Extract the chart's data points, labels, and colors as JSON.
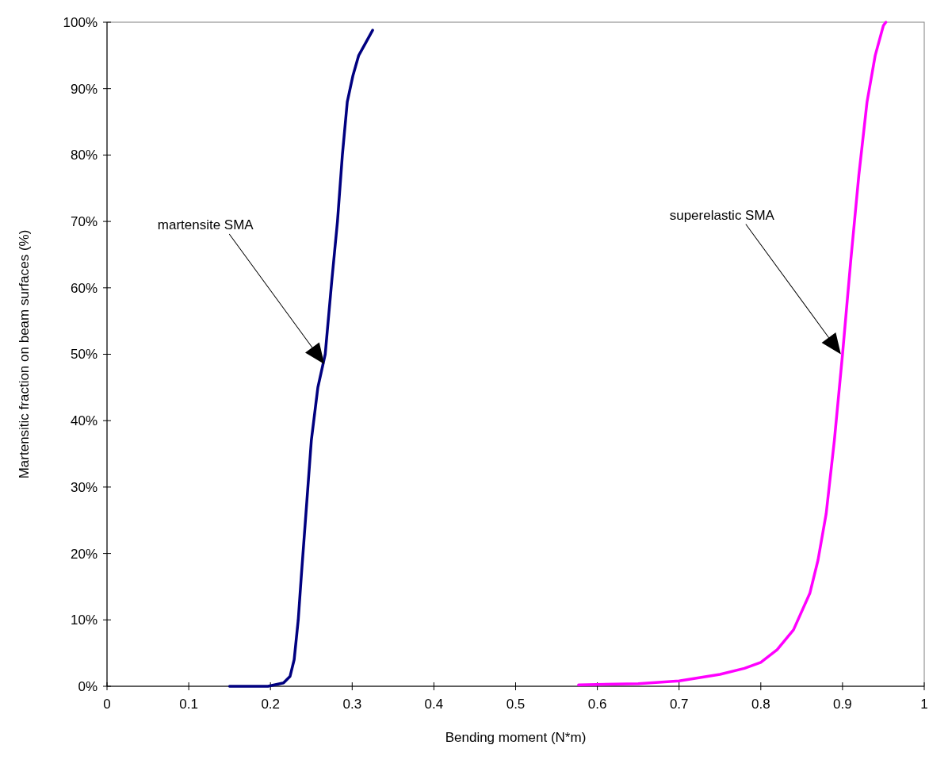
{
  "chart_data": {
    "type": "line",
    "xlabel": "Bending moment (N*m)",
    "ylabel": "Martensitic fraction on beam surfaces (%)",
    "xlim": [
      0,
      1
    ],
    "xticks": [
      0,
      0.1,
      0.2,
      0.3,
      0.4,
      0.5,
      0.6,
      0.7,
      0.8,
      0.9,
      1
    ],
    "ylim": [
      0,
      100
    ],
    "yticks": [
      {
        "value": 0,
        "label": "0%"
      },
      {
        "value": 10,
        "label": "10%"
      },
      {
        "value": 20,
        "label": "20%"
      },
      {
        "value": 30,
        "label": "30%"
      },
      {
        "value": 40,
        "label": "40%"
      },
      {
        "value": 50,
        "label": "50%"
      },
      {
        "value": 60,
        "label": "60%"
      },
      {
        "value": 70,
        "label": "70%"
      },
      {
        "value": 80,
        "label": "80%"
      },
      {
        "value": 90,
        "label": "90%"
      },
      {
        "value": 100,
        "label": "100%"
      }
    ],
    "grid": false,
    "marker": "none",
    "line_style": "solid",
    "series": [
      {
        "color": "#000080",
        "x": [
          0.15,
          0.197,
          0.216,
          0.224,
          0.229,
          0.234,
          0.238,
          0.244,
          0.25,
          0.258,
          0.267,
          0.275,
          0.282,
          0.288,
          0.294,
          0.301,
          0.308,
          0.317,
          0.325
        ],
        "values": [
          0,
          0,
          0.5,
          1.5,
          4,
          10,
          17,
          27,
          37,
          45,
          50,
          61,
          70,
          80,
          88,
          92,
          95,
          97,
          98.8
        ]
      },
      {
        "color": "#ff00ff",
        "x": [
          0.577,
          0.65,
          0.7,
          0.75,
          0.78,
          0.8,
          0.82,
          0.84,
          0.86,
          0.87,
          0.88,
          0.89,
          0.9,
          0.91,
          0.92,
          0.93,
          0.94,
          0.95,
          0.953
        ],
        "values": [
          0.2,
          0.4,
          0.8,
          1.8,
          2.7,
          3.6,
          5.5,
          8.5,
          14,
          19,
          26,
          37,
          50,
          64,
          77,
          88,
          95,
          99.5,
          100
        ]
      }
    ],
    "annotations": [
      "martensite SMA",
      "superelastic SMA"
    ]
  }
}
